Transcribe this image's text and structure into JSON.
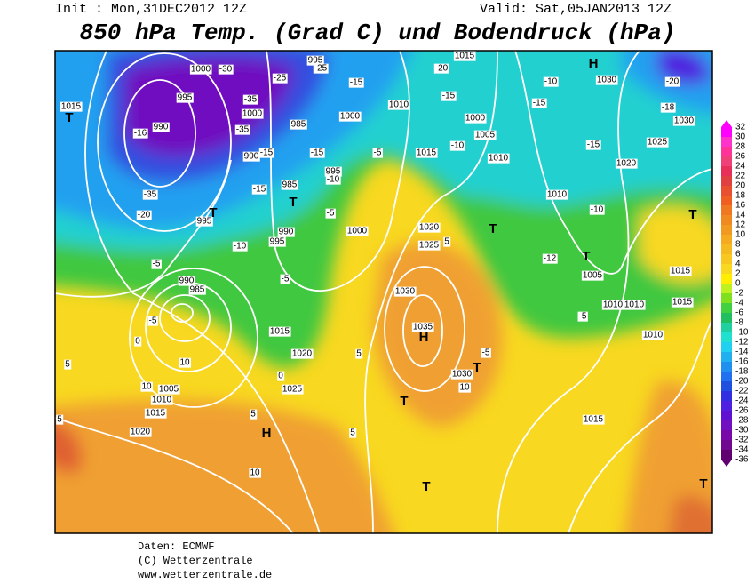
{
  "header": {
    "init": "Init : Mon,31DEC2012 12Z",
    "valid": "Valid: Sat,05JAN2013 12Z",
    "title": "850 hPa Temp. (Grad C) und Bodendruck (hPa)"
  },
  "map_labels": [
    "1000",
    "-30",
    "995",
    "-25",
    "-25",
    "-15",
    "995",
    "-35",
    "1000",
    "990",
    "-16",
    "-35",
    "985",
    "1000",
    "1010",
    "-20",
    "1015",
    "-15",
    "1000",
    "1005",
    "-10",
    "1015",
    "1010",
    "-10",
    "1030",
    "-20",
    "-15",
    "-18",
    "1030",
    "-15",
    "1025",
    "1020",
    "1010",
    "-10",
    "-12",
    "1005",
    "1015",
    "1010",
    "1010",
    "-5",
    "1015",
    "1010",
    "1015",
    "-35",
    "-20",
    "995",
    "-10",
    "-5",
    "990",
    "995",
    "985",
    "-15",
    "-5",
    "1000",
    "-5",
    "990",
    "985",
    "-5",
    "1015",
    "1020",
    "1025",
    "0",
    "5",
    "10",
    "1005",
    "1010",
    "1015",
    "1020",
    "5",
    "10",
    "1020",
    "1025",
    "1030",
    "1035",
    "1030",
    "10",
    "-5",
    "1015",
    "-15",
    "-15",
    "995",
    "990",
    "-5",
    "-10",
    "5",
    "0",
    "5",
    "5",
    "10",
    "5"
  ],
  "pressure_centers": [
    "H",
    "T",
    "T",
    "T",
    "T",
    "T",
    "T",
    "H",
    "T",
    "T",
    "T",
    "H",
    "T"
  ],
  "colorbar": {
    "labels": [
      32,
      30,
      28,
      26,
      24,
      22,
      20,
      18,
      16,
      14,
      12,
      10,
      8,
      6,
      4,
      2,
      0,
      -2,
      -4,
      -6,
      -8,
      -10,
      -12,
      -14,
      -16,
      -18,
      -20,
      -22,
      -24,
      -26,
      -28,
      -30,
      -32,
      -34,
      -36
    ],
    "colors": [
      "#ff00ff",
      "#ff33cc",
      "#ff3399",
      "#f0407a",
      "#e6305a",
      "#e04040",
      "#e85030",
      "#ef6020",
      "#f07820",
      "#f08a20",
      "#f09a20",
      "#f5aa20",
      "#f5ba20",
      "#f8c820",
      "#fad820",
      "#ffee00",
      "#c0f020",
      "#80e020",
      "#40d040",
      "#20c060",
      "#20d0a0",
      "#20e0d0",
      "#20d0f0",
      "#20b0f0",
      "#2090f0",
      "#2070f0",
      "#2050e0",
      "#3030e0",
      "#5020e0",
      "#6010d0",
      "#7010c0",
      "#7808a8",
      "#700890",
      "#600070"
    ]
  },
  "footer": [
    "Daten: ECMWF",
    "(C) Wetterzentrale",
    "www.wetterzentrale.de"
  ]
}
